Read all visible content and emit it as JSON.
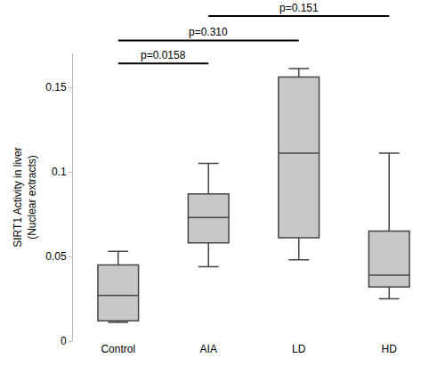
{
  "chart_data": {
    "type": "box",
    "categories": [
      "Control",
      "AIA",
      "LD",
      "HD"
    ],
    "lowerfence": [
      0.011,
      0.044,
      0.048,
      0.025
    ],
    "q1": [
      0.012,
      0.058,
      0.061,
      0.032
    ],
    "median": [
      0.027,
      0.073,
      0.111,
      0.039
    ],
    "q3": [
      0.045,
      0.087,
      0.156,
      0.065
    ],
    "upperfence": [
      0.053,
      0.105,
      0.161,
      0.111
    ],
    "color": "#c8c8c8",
    "ylabel": "SIRT1 Activity in liver\n(Nuclear extracts)",
    "ylim": [
      0,
      0.17
    ],
    "yticks": [
      0,
      0.05,
      0.1,
      0.15
    ],
    "grid": false,
    "comparisons": [
      {
        "from": "Control",
        "to": "AIA",
        "label": "p=0.0158"
      },
      {
        "from": "Control",
        "to": "LD",
        "label": "p=0.310"
      },
      {
        "from": "AIA",
        "to": "HD",
        "label": "p=0.151"
      }
    ]
  }
}
